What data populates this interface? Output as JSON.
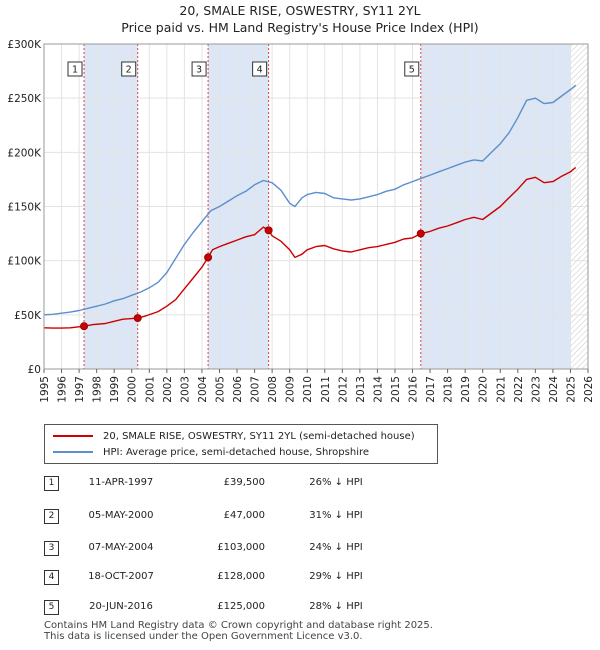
{
  "title_line1": "20, SMALE RISE, OSWESTRY, SY11 2YL",
  "title_line2": "Price paid vs. HM Land Registry's House Price Index (HPI)",
  "legend": {
    "property": "20, SMALE RISE, OSWESTRY, SY11 2YL (semi-detached house)",
    "hpi": "HPI: Average price, semi-detached house, Shropshire"
  },
  "colors": {
    "property": "#cc0000",
    "hpi": "#5b8fcc",
    "shade": "#dde6f5"
  },
  "chart_data": {
    "type": "line",
    "title": "20, SMALE RISE, OSWESTRY, SY11 2YL — Price paid vs. HM Land Registry's House Price Index (HPI)",
    "xlim": [
      1995,
      2026
    ],
    "ylim": [
      0,
      300000
    ],
    "x_ticks": [
      1995,
      1996,
      1997,
      1998,
      1999,
      2000,
      2001,
      2002,
      2003,
      2004,
      2005,
      2006,
      2007,
      2008,
      2009,
      2010,
      2011,
      2012,
      2013,
      2014,
      2015,
      2016,
      2017,
      2018,
      2019,
      2020,
      2021,
      2022,
      2023,
      2024,
      2025,
      2026
    ],
    "y_ticks": [
      0,
      50000,
      100000,
      150000,
      200000,
      250000,
      300000
    ],
    "y_tick_labels": [
      "£0",
      "£50K",
      "£100K",
      "£150K",
      "£200K",
      "£250K",
      "£300K"
    ],
    "series": [
      {
        "name": "HPI: Average price, semi-detached house, Shropshire",
        "x": [
          1995.0,
          1995.5,
          1996.0,
          1996.5,
          1997.0,
          1997.5,
          1998.0,
          1998.5,
          1999.0,
          1999.5,
          2000.0,
          2000.5,
          2001.0,
          2001.5,
          2002.0,
          2002.5,
          2003.0,
          2003.5,
          2004.0,
          2004.5,
          2005.0,
          2005.5,
          2006.0,
          2006.5,
          2007.0,
          2007.5,
          2008.0,
          2008.5,
          2009.0,
          2009.3,
          2009.7,
          2010.0,
          2010.5,
          2011.0,
          2011.5,
          2012.0,
          2012.5,
          2013.0,
          2013.5,
          2014.0,
          2014.5,
          2015.0,
          2015.5,
          2016.0,
          2016.5,
          2017.0,
          2017.5,
          2018.0,
          2018.5,
          2019.0,
          2019.5,
          2020.0,
          2020.5,
          2021.0,
          2021.5,
          2022.0,
          2022.5,
          2023.0,
          2023.5,
          2024.0,
          2024.5,
          2025.0,
          2025.3
        ],
        "values": [
          50000,
          50500,
          51500,
          52500,
          54000,
          56000,
          58000,
          60000,
          63000,
          65000,
          68000,
          71000,
          75000,
          80000,
          89000,
          102000,
          115000,
          126000,
          136000,
          146000,
          150000,
          155000,
          160000,
          164000,
          170000,
          174000,
          172000,
          165000,
          153000,
          150000,
          158000,
          161000,
          163000,
          162000,
          158000,
          157000,
          156000,
          157000,
          159000,
          161000,
          164000,
          166000,
          170000,
          173000,
          176000,
          179000,
          182000,
          185000,
          188000,
          191000,
          193000,
          192000,
          200000,
          208000,
          218000,
          232000,
          248000,
          250000,
          245000,
          246000,
          252000,
          258000,
          262000
        ]
      },
      {
        "name": "20, SMALE RISE, OSWESTRY, SY11 2YL (semi-detached house)",
        "x": [
          1995.0,
          1995.5,
          1996.0,
          1996.5,
          1997.28,
          1997.8,
          1998.5,
          1999.0,
          1999.5,
          2000.34,
          2000.8,
          2001.5,
          2002.0,
          2002.5,
          2003.0,
          2003.5,
          2004.0,
          2004.35,
          2004.6,
          2005.0,
          2005.5,
          2006.0,
          2006.5,
          2007.0,
          2007.5,
          2007.8,
          2008.0,
          2008.5,
          2009.0,
          2009.3,
          2009.7,
          2010.0,
          2010.5,
          2011.0,
          2011.5,
          2012.0,
          2012.5,
          2013.0,
          2013.5,
          2014.0,
          2014.5,
          2015.0,
          2015.5,
          2016.0,
          2016.47,
          2017.0,
          2017.5,
          2018.0,
          2018.5,
          2019.0,
          2019.5,
          2020.0,
          2020.5,
          2021.0,
          2021.5,
          2022.0,
          2022.5,
          2023.0,
          2023.5,
          2024.0,
          2024.5,
          2025.0,
          2025.3
        ],
        "values": [
          38000,
          37800,
          37800,
          38000,
          39500,
          41000,
          42000,
          44000,
          46000,
          47000,
          49000,
          53000,
          58000,
          64000,
          74000,
          84000,
          94000,
          103000,
          110000,
          113000,
          116000,
          119000,
          122000,
          124000,
          131000,
          128000,
          123000,
          118000,
          110000,
          103000,
          106000,
          110000,
          113000,
          114000,
          111000,
          109000,
          108000,
          110000,
          112000,
          113000,
          115000,
          117000,
          120000,
          121000,
          125000,
          127000,
          130000,
          132000,
          135000,
          138000,
          140000,
          138000,
          144000,
          150000,
          158000,
          166000,
          175000,
          177000,
          172000,
          173000,
          178000,
          182000,
          186000
        ]
      }
    ],
    "sales": [
      {
        "label": "1",
        "x": 1997.28,
        "value": 39500
      },
      {
        "label": "2",
        "x": 2000.34,
        "value": 47000
      },
      {
        "label": "3",
        "x": 2004.35,
        "value": 103000
      },
      {
        "label": "4",
        "x": 2007.8,
        "value": 128000
      },
      {
        "label": "5",
        "x": 2016.47,
        "value": 125000
      }
    ],
    "shaded_ranges": [
      [
        1997.28,
        2000.34
      ],
      [
        2004.35,
        2007.8
      ],
      [
        2016.47,
        2025.0
      ]
    ],
    "future_hatch_from": 2025.0
  },
  "sales_table": [
    {
      "num": "1",
      "date": "11-APR-1997",
      "price": "£39,500",
      "hpi": "26% ↓ HPI"
    },
    {
      "num": "2",
      "date": "05-MAY-2000",
      "price": "£47,000",
      "hpi": "31% ↓ HPI"
    },
    {
      "num": "3",
      "date": "07-MAY-2004",
      "price": "£103,000",
      "hpi": "24% ↓ HPI"
    },
    {
      "num": "4",
      "date": "18-OCT-2007",
      "price": "£128,000",
      "hpi": "29% ↓ HPI"
    },
    {
      "num": "5",
      "date": "20-JUN-2016",
      "price": "£125,000",
      "hpi": "28% ↓ HPI"
    }
  ],
  "footer": {
    "line1": "Contains HM Land Registry data © Crown copyright and database right 2025.",
    "line2": "This data is licensed under the Open Government Licence v3.0."
  }
}
